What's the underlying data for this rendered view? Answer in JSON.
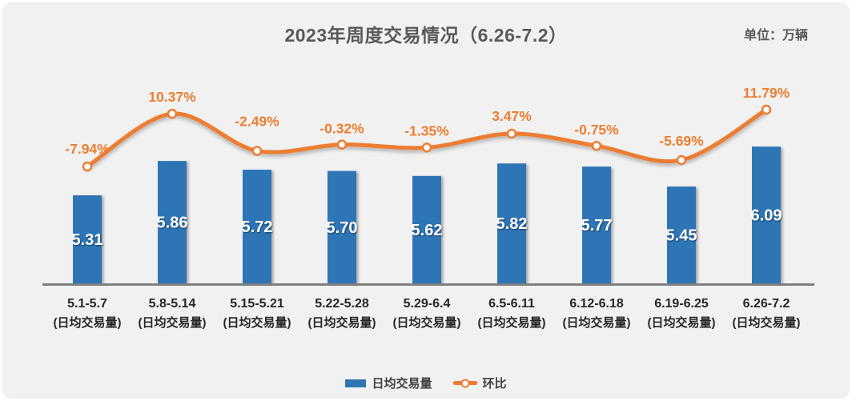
{
  "header": {
    "title": "2023年周度交易情况（6.26-7.2）",
    "unit_label": "单位：万辆"
  },
  "chart_data": {
    "type": "bar",
    "title": "2023年周度交易情况（6.26-7.2）",
    "unit": "万辆",
    "categories": [
      "5.1-5.7",
      "5.8-5.14",
      "5.15-5.21",
      "5.22-5.28",
      "5.29-6.4",
      "6.5-6.11",
      "6.12-6.18",
      "6.19-6.25",
      "6.26-7.2"
    ],
    "category_sub_label": "(日均交易量)",
    "series": [
      {
        "name": "日均交易量",
        "type": "bar",
        "color": "#2E75B6",
        "values": [
          5.31,
          5.86,
          5.72,
          5.7,
          5.62,
          5.82,
          5.77,
          5.45,
          6.09
        ],
        "value_labels": [
          "5.31",
          "5.86",
          "5.72",
          "5.70",
          "5.62",
          "5.82",
          "5.77",
          "5.45",
          "6.09"
        ]
      },
      {
        "name": "环比",
        "type": "line",
        "color": "#ED7D31",
        "values": [
          -7.94,
          10.37,
          -2.49,
          -0.32,
          -1.35,
          3.47,
          -0.75,
          -5.69,
          11.79
        ],
        "labels": [
          "-7.94%",
          "10.37%",
          "-2.49%",
          "-0.32%",
          "-1.35%",
          "3.47%",
          "-0.75%",
          "-5.69%",
          "11.79%"
        ]
      }
    ],
    "legend": [
      {
        "label": "日均交易量",
        "type": "bar",
        "color": "#2E75B6"
      },
      {
        "label": "环比",
        "type": "line",
        "color": "#ED7D31"
      }
    ],
    "layout": {
      "value_axis_visible": false,
      "value_axis_min": 3.9,
      "grid": false,
      "legend_position": "bottom"
    }
  },
  "colors": {
    "bar": "#2E75B6",
    "line": "#ED7D31",
    "marker_fill": "#FFFFFF",
    "background": "#F1F1F1",
    "title_text": "#595959",
    "axis_line": "#7F7F7F",
    "x_label_text": "#262626",
    "bar_value_text": "#FFFFFF"
  }
}
